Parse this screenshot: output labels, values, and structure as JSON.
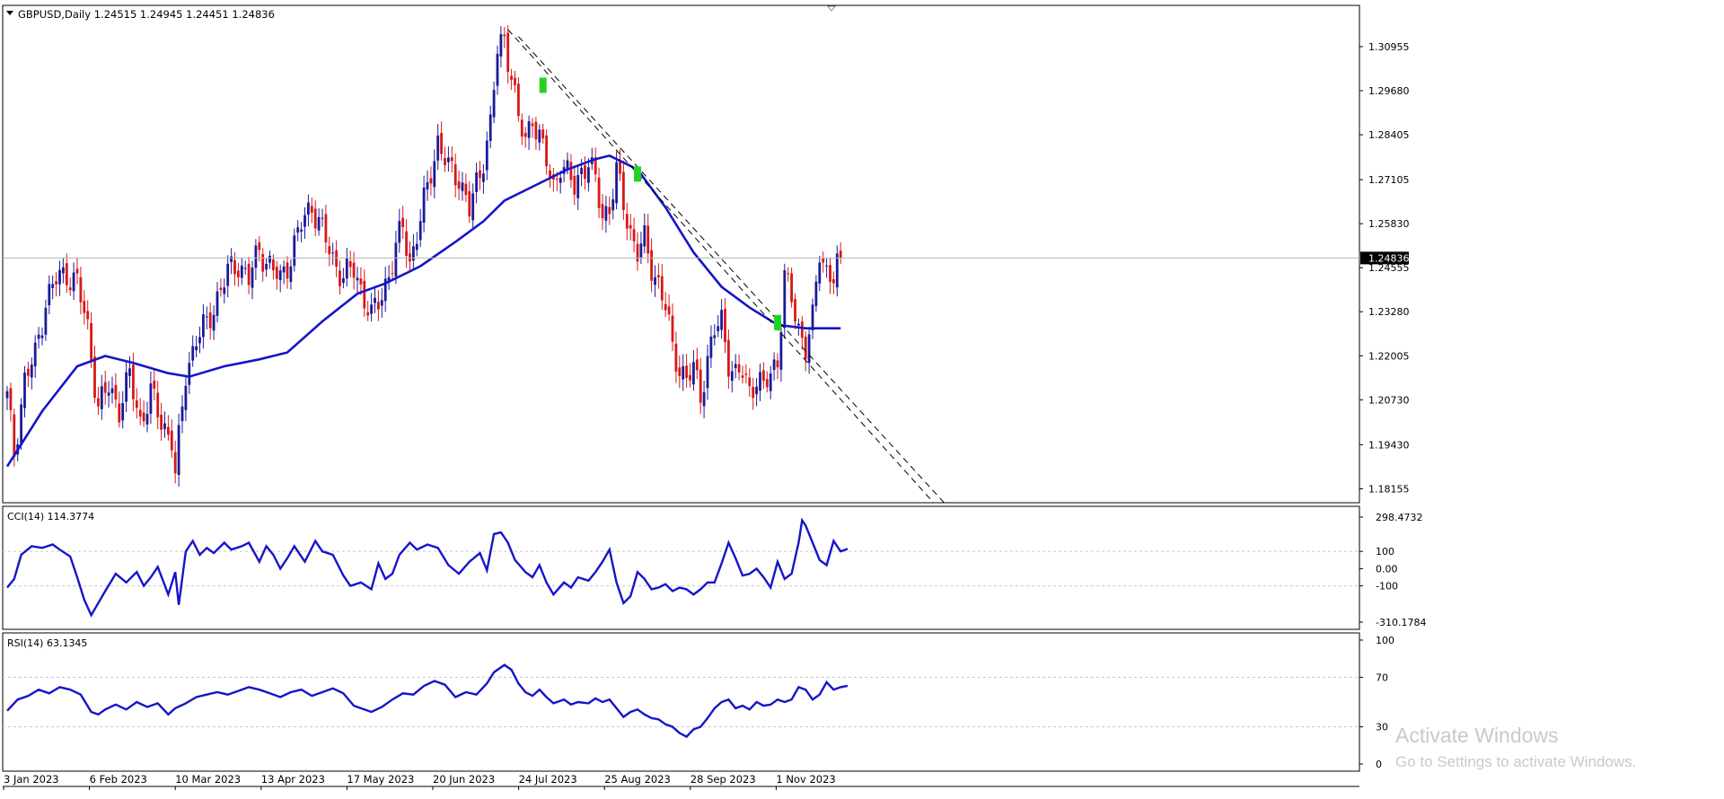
{
  "symbol_header": {
    "symbol": "GBPUSD,Daily",
    "open": "1.24515",
    "high": "1.24945",
    "low": "1.24451",
    "close": "1.24836"
  },
  "current_price_label": "1.24836",
  "colors": {
    "background": "#ffffff",
    "grid": "#c8c8c8",
    "frame": "#000000",
    "bull_candle": "#1a1a9a",
    "bear_candle": "#d81818",
    "ma_line": "#1515c8",
    "indicator_line": "#1515c8",
    "signal_marker": "#22d322",
    "price_line": "#b4b4b4",
    "price_label_bg": "#000000",
    "price_label_text": "#ffffff",
    "watermark": "#c9c9c9"
  },
  "watermark": {
    "title": "Activate Windows",
    "subtitle": "Go to Settings to activate Windows."
  },
  "chart_data": [
    {
      "type": "candlestick",
      "name": "price",
      "x_ticks": [
        "3 Jan 2023",
        "6 Feb 2023",
        "10 Mar 2023",
        "13 Apr 2023",
        "17 May 2023",
        "20 Jun 2023",
        "24 Jul 2023",
        "25 Aug 2023",
        "28 Sep 2023",
        "1 Nov 2023"
      ],
      "y_ticks": [
        "1.30955",
        "1.29680",
        "1.28405",
        "1.27105",
        "1.25830",
        "1.24555",
        "1.23280",
        "1.22005",
        "1.20730",
        "1.19430",
        "1.18155"
      ],
      "ylim": [
        1.1775,
        1.3215
      ],
      "dates": [
        "2023-01-02",
        "2023-11-20"
      ],
      "anchors": [
        [
          0,
          1.208
        ],
        [
          2,
          1.192
        ],
        [
          5,
          1.213
        ],
        [
          8,
          1.22
        ],
        [
          11,
          1.236
        ],
        [
          14,
          1.242
        ],
        [
          17,
          1.244
        ],
        [
          20,
          1.241
        ],
        [
          23,
          1.228
        ],
        [
          26,
          1.205
        ],
        [
          29,
          1.211
        ],
        [
          32,
          1.205
        ],
        [
          35,
          1.214
        ],
        [
          38,
          1.201
        ],
        [
          41,
          1.209
        ],
        [
          44,
          1.201
        ],
        [
          47,
          1.196
        ],
        [
          48,
          1.185
        ],
        [
          51,
          1.215
        ],
        [
          54,
          1.225
        ],
        [
          57,
          1.229
        ],
        [
          60,
          1.237
        ],
        [
          63,
          1.244
        ],
        [
          66,
          1.247
        ],
        [
          69,
          1.242
        ],
        [
          72,
          1.251
        ],
        [
          75,
          1.246
        ],
        [
          78,
          1.242
        ],
        [
          81,
          1.249
        ],
        [
          84,
          1.258
        ],
        [
          87,
          1.264
        ],
        [
          90,
          1.256
        ],
        [
          93,
          1.248
        ],
        [
          96,
          1.243
        ],
        [
          99,
          1.245
        ],
        [
          102,
          1.237
        ],
        [
          104,
          1.231
        ],
        [
          107,
          1.238
        ],
        [
          110,
          1.247
        ],
        [
          113,
          1.258
        ],
        [
          115,
          1.247
        ],
        [
          118,
          1.259
        ],
        [
          121,
          1.274
        ],
        [
          123,
          1.282
        ],
        [
          126,
          1.274
        ],
        [
          129,
          1.272
        ],
        [
          132,
          1.262
        ],
        [
          135,
          1.273
        ],
        [
          138,
          1.287
        ],
        [
          140,
          1.308
        ],
        [
          142,
          1.312
        ],
        [
          144,
          1.302
        ],
        [
          146,
          1.288
        ],
        [
          148,
          1.282
        ],
        [
          150,
          1.29
        ],
        [
          152,
          1.283
        ],
        [
          154,
          1.276
        ],
        [
          156,
          1.269
        ],
        [
          158,
          1.276
        ],
        [
          160,
          1.272
        ],
        [
          162,
          1.269
        ],
        [
          164,
          1.274
        ],
        [
          166,
          1.276
        ],
        [
          168,
          1.27
        ],
        [
          170,
          1.261
        ],
        [
          172,
          1.263
        ],
        [
          174,
          1.273
        ],
        [
          176,
          1.264
        ],
        [
          178,
          1.256
        ],
        [
          180,
          1.25
        ],
        [
          182,
          1.253
        ],
        [
          184,
          1.246
        ],
        [
          186,
          1.241
        ],
        [
          188,
          1.234
        ],
        [
          190,
          1.222
        ],
        [
          192,
          1.217
        ],
        [
          194,
          1.213
        ],
        [
          196,
          1.216
        ],
        [
          198,
          1.209
        ],
        [
          200,
          1.219
        ],
        [
          202,
          1.227
        ],
        [
          204,
          1.23
        ],
        [
          206,
          1.219
        ],
        [
          208,
          1.214
        ],
        [
          210,
          1.215
        ],
        [
          212,
          1.21
        ],
        [
          214,
          1.214
        ],
        [
          216,
          1.21
        ],
        [
          218,
          1.215
        ],
        [
          220,
          1.219
        ],
        [
          222,
          1.243
        ],
        [
          224,
          1.236
        ],
        [
          226,
          1.228
        ],
        [
          228,
          1.223
        ],
        [
          230,
          1.23
        ],
        [
          232,
          1.25
        ],
        [
          234,
          1.245
        ],
        [
          236,
          1.243
        ],
        [
          238,
          1.2484
        ]
      ],
      "moving_average": [
        [
          0,
          1.188
        ],
        [
          10,
          1.204
        ],
        [
          20,
          1.217
        ],
        [
          28,
          1.22
        ],
        [
          36,
          1.218
        ],
        [
          46,
          1.215
        ],
        [
          52,
          1.214
        ],
        [
          62,
          1.217
        ],
        [
          72,
          1.219
        ],
        [
          80,
          1.221
        ],
        [
          90,
          1.23
        ],
        [
          100,
          1.238
        ],
        [
          108,
          1.241
        ],
        [
          118,
          1.246
        ],
        [
          128,
          1.253
        ],
        [
          136,
          1.259
        ],
        [
          142,
          1.265
        ],
        [
          150,
          1.269
        ],
        [
          160,
          1.274
        ],
        [
          168,
          1.277
        ],
        [
          172,
          1.278
        ],
        [
          180,
          1.274
        ],
        [
          188,
          1.263
        ],
        [
          196,
          1.25
        ],
        [
          204,
          1.24
        ],
        [
          212,
          1.234
        ],
        [
          220,
          1.229
        ],
        [
          228,
          1.228
        ],
        [
          238,
          1.228
        ]
      ],
      "trendlines": [
        {
          "start": [
            143,
            1.3145
          ],
          "end": [
            265,
            1.177
          ],
          "style": "dashed"
        },
        {
          "start": [
            146,
            1.3125
          ],
          "end": [
            268,
            1.177
          ],
          "style": "dashed"
        }
      ],
      "signal_markers": [
        {
          "bar": 153,
          "price": 1.2985
        },
        {
          "bar": 180,
          "price": 1.2728
        },
        {
          "bar": 220,
          "price": 1.2298
        }
      ]
    },
    {
      "type": "line",
      "name": "CCI",
      "label": "CCI(14) 114.3774",
      "y_ticks": [
        "298.4732",
        "100",
        "0.00",
        "-100",
        "-310.1784"
      ],
      "ylim": [
        -310.1784,
        298.4732
      ],
      "levels": [
        100,
        -100
      ],
      "points": [
        [
          0,
          -110
        ],
        [
          2,
          -60
        ],
        [
          4,
          80
        ],
        [
          7,
          130
        ],
        [
          10,
          120
        ],
        [
          13,
          140
        ],
        [
          15,
          110
        ],
        [
          18,
          70
        ],
        [
          20,
          -50
        ],
        [
          22,
          -180
        ],
        [
          24,
          -270
        ],
        [
          26,
          -200
        ],
        [
          28,
          -130
        ],
        [
          31,
          -30
        ],
        [
          34,
          -80
        ],
        [
          37,
          -20
        ],
        [
          39,
          -100
        ],
        [
          41,
          -50
        ],
        [
          43,
          10
        ],
        [
          46,
          -150
        ],
        [
          48,
          -20
        ],
        [
          49,
          -210
        ],
        [
          51,
          100
        ],
        [
          53,
          160
        ],
        [
          55,
          80
        ],
        [
          57,
          120
        ],
        [
          59,
          90
        ],
        [
          62,
          150
        ],
        [
          64,
          110
        ],
        [
          67,
          130
        ],
        [
          69,
          150
        ],
        [
          72,
          40
        ],
        [
          74,
          130
        ],
        [
          76,
          80
        ],
        [
          78,
          0
        ],
        [
          80,
          60
        ],
        [
          82,
          130
        ],
        [
          85,
          40
        ],
        [
          88,
          160
        ],
        [
          90,
          100
        ],
        [
          93,
          80
        ],
        [
          96,
          -40
        ],
        [
          98,
          -100
        ],
        [
          101,
          -80
        ],
        [
          104,
          -120
        ],
        [
          106,
          30
        ],
        [
          108,
          -60
        ],
        [
          110,
          -30
        ],
        [
          112,
          80
        ],
        [
          115,
          150
        ],
        [
          117,
          110
        ],
        [
          120,
          140
        ],
        [
          123,
          120
        ],
        [
          126,
          20
        ],
        [
          129,
          -30
        ],
        [
          132,
          40
        ],
        [
          135,
          90
        ],
        [
          137,
          -10
        ],
        [
          139,
          200
        ],
        [
          141,
          210
        ],
        [
          143,
          150
        ],
        [
          145,
          50
        ],
        [
          148,
          -20
        ],
        [
          150,
          -50
        ],
        [
          152,
          20
        ],
        [
          154,
          -80
        ],
        [
          156,
          -150
        ],
        [
          159,
          -80
        ],
        [
          161,
          -110
        ],
        [
          163,
          -50
        ],
        [
          166,
          -70
        ],
        [
          168,
          -20
        ],
        [
          170,
          40
        ],
        [
          172,
          110
        ],
        [
          174,
          -80
        ],
        [
          176,
          -200
        ],
        [
          178,
          -160
        ],
        [
          180,
          -20
        ],
        [
          182,
          -60
        ],
        [
          184,
          -120
        ],
        [
          186,
          -110
        ],
        [
          188,
          -90
        ],
        [
          190,
          -130
        ],
        [
          192,
          -110
        ],
        [
          194,
          -120
        ],
        [
          196,
          -150
        ],
        [
          198,
          -120
        ],
        [
          200,
          -80
        ],
        [
          202,
          -80
        ],
        [
          204,
          30
        ],
        [
          206,
          150
        ],
        [
          208,
          60
        ],
        [
          210,
          -40
        ],
        [
          212,
          -30
        ],
        [
          214,
          0
        ],
        [
          216,
          -50
        ],
        [
          218,
          -110
        ],
        [
          220,
          40
        ],
        [
          222,
          -60
        ],
        [
          224,
          -30
        ],
        [
          226,
          150
        ],
        [
          227,
          280
        ],
        [
          228,
          250
        ],
        [
          230,
          150
        ],
        [
          232,
          50
        ],
        [
          234,
          20
        ],
        [
          236,
          160
        ],
        [
          238,
          100
        ],
        [
          240,
          114.3774
        ]
      ]
    },
    {
      "type": "line",
      "name": "RSI",
      "label": "RSI(14) 63.1345",
      "y_ticks": [
        "100",
        "70",
        "30",
        "0"
      ],
      "ylim": [
        0,
        100
      ],
      "levels": [
        70,
        30
      ],
      "points": [
        [
          0,
          43
        ],
        [
          3,
          52
        ],
        [
          6,
          55
        ],
        [
          9,
          60
        ],
        [
          12,
          57
        ],
        [
          15,
          62
        ],
        [
          18,
          60
        ],
        [
          21,
          56
        ],
        [
          24,
          42
        ],
        [
          26,
          40
        ],
        [
          28,
          44
        ],
        [
          31,
          48
        ],
        [
          34,
          44
        ],
        [
          37,
          50
        ],
        [
          40,
          46
        ],
        [
          43,
          49
        ],
        [
          46,
          40
        ],
        [
          48,
          45
        ],
        [
          51,
          49
        ],
        [
          54,
          54
        ],
        [
          57,
          56
        ],
        [
          60,
          58
        ],
        [
          63,
          56
        ],
        [
          66,
          59
        ],
        [
          69,
          62
        ],
        [
          72,
          60
        ],
        [
          75,
          57
        ],
        [
          78,
          54
        ],
        [
          81,
          58
        ],
        [
          84,
          60
        ],
        [
          87,
          55
        ],
        [
          90,
          58
        ],
        [
          93,
          61
        ],
        [
          96,
          57
        ],
        [
          99,
          47
        ],
        [
          102,
          44
        ],
        [
          104,
          42
        ],
        [
          107,
          46
        ],
        [
          110,
          52
        ],
        [
          113,
          57
        ],
        [
          116,
          56
        ],
        [
          119,
          63
        ],
        [
          122,
          67
        ],
        [
          125,
          64
        ],
        [
          128,
          54
        ],
        [
          131,
          58
        ],
        [
          134,
          56
        ],
        [
          137,
          65
        ],
        [
          139,
          74
        ],
        [
          142,
          80
        ],
        [
          144,
          76
        ],
        [
          146,
          65
        ],
        [
          148,
          58
        ],
        [
          150,
          55
        ],
        [
          152,
          60
        ],
        [
          154,
          54
        ],
        [
          156,
          49
        ],
        [
          159,
          52
        ],
        [
          161,
          48
        ],
        [
          163,
          50
        ],
        [
          166,
          49
        ],
        [
          168,
          53
        ],
        [
          170,
          50
        ],
        [
          172,
          52
        ],
        [
          174,
          45
        ],
        [
          176,
          38
        ],
        [
          178,
          42
        ],
        [
          180,
          44
        ],
        [
          182,
          40
        ],
        [
          184,
          37
        ],
        [
          186,
          36
        ],
        [
          188,
          32
        ],
        [
          190,
          30
        ],
        [
          192,
          25
        ],
        [
          194,
          22
        ],
        [
          196,
          28
        ],
        [
          198,
          30
        ],
        [
          200,
          37
        ],
        [
          202,
          45
        ],
        [
          204,
          50
        ],
        [
          206,
          52
        ],
        [
          208,
          45
        ],
        [
          210,
          47
        ],
        [
          212,
          44
        ],
        [
          214,
          50
        ],
        [
          216,
          47
        ],
        [
          218,
          48
        ],
        [
          220,
          52
        ],
        [
          222,
          50
        ],
        [
          224,
          52
        ],
        [
          226,
          62
        ],
        [
          228,
          60
        ],
        [
          230,
          52
        ],
        [
          232,
          56
        ],
        [
          234,
          66
        ],
        [
          236,
          60
        ],
        [
          238,
          62
        ],
        [
          240,
          63.1345
        ]
      ]
    }
  ]
}
